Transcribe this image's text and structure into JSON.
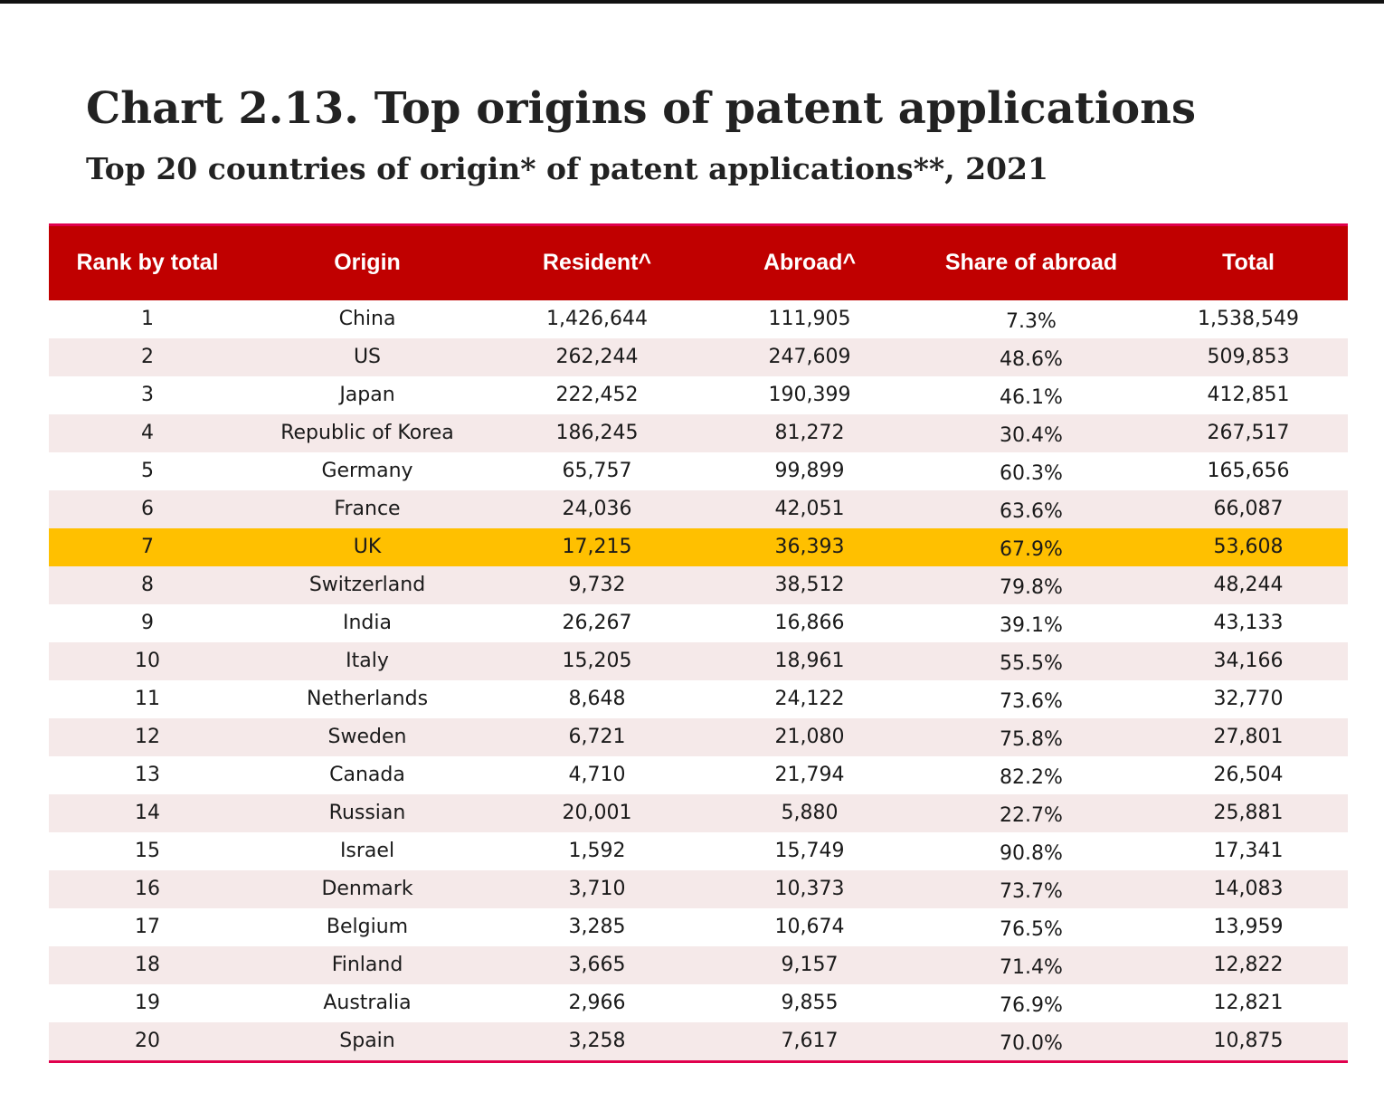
{
  "title": "Chart 2.13. Top origins of patent applications",
  "subtitle": "Top 20 countries of origin* of patent applications**, 2021",
  "colors": {
    "header_bg": "#c00000",
    "accent_line": "#e0004d",
    "alt_row": "#f5e9e9",
    "highlight_row": "#ffc000"
  },
  "chart_data": {
    "type": "table",
    "title": "Chart 2.13. Top origins of patent applications",
    "subtitle": "Top 20 countries of origin* of patent applications**, 2021",
    "columns": [
      "Rank by total",
      "Origin",
      "Resident^",
      "Abroad^",
      "Share of abroad",
      "Total"
    ],
    "highlighted_origin": "UK",
    "rows": [
      {
        "rank": "1",
        "origin": "China",
        "resident": "1,426,644",
        "abroad": "111,905",
        "share": "7.3%",
        "total": "1,538,549"
      },
      {
        "rank": "2",
        "origin": "US",
        "resident": "262,244",
        "abroad": "247,609",
        "share": "48.6%",
        "total": "509,853"
      },
      {
        "rank": "3",
        "origin": "Japan",
        "resident": "222,452",
        "abroad": "190,399",
        "share": "46.1%",
        "total": "412,851"
      },
      {
        "rank": "4",
        "origin": "Republic of Korea",
        "resident": "186,245",
        "abroad": "81,272",
        "share": "30.4%",
        "total": "267,517"
      },
      {
        "rank": "5",
        "origin": "Germany",
        "resident": "65,757",
        "abroad": "99,899",
        "share": "60.3%",
        "total": "165,656"
      },
      {
        "rank": "6",
        "origin": "France",
        "resident": "24,036",
        "abroad": "42,051",
        "share": "63.6%",
        "total": "66,087"
      },
      {
        "rank": "7",
        "origin": "UK",
        "resident": "17,215",
        "abroad": "36,393",
        "share": "67.9%",
        "total": "53,608"
      },
      {
        "rank": "8",
        "origin": "Switzerland",
        "resident": "9,732",
        "abroad": "38,512",
        "share": "79.8%",
        "total": "48,244"
      },
      {
        "rank": "9",
        "origin": "India",
        "resident": "26,267",
        "abroad": "16,866",
        "share": "39.1%",
        "total": "43,133"
      },
      {
        "rank": "10",
        "origin": "Italy",
        "resident": "15,205",
        "abroad": "18,961",
        "share": "55.5%",
        "total": "34,166"
      },
      {
        "rank": "11",
        "origin": "Netherlands",
        "resident": "8,648",
        "abroad": "24,122",
        "share": "73.6%",
        "total": "32,770"
      },
      {
        "rank": "12",
        "origin": "Sweden",
        "resident": "6,721",
        "abroad": "21,080",
        "share": "75.8%",
        "total": "27,801"
      },
      {
        "rank": "13",
        "origin": "Canada",
        "resident": "4,710",
        "abroad": "21,794",
        "share": "82.2%",
        "total": "26,504"
      },
      {
        "rank": "14",
        "origin": "Russian",
        "resident": "20,001",
        "abroad": "5,880",
        "share": "22.7%",
        "total": "25,881"
      },
      {
        "rank": "15",
        "origin": "Israel",
        "resident": "1,592",
        "abroad": "15,749",
        "share": "90.8%",
        "total": "17,341"
      },
      {
        "rank": "16",
        "origin": "Denmark",
        "resident": "3,710",
        "abroad": "10,373",
        "share": "73.7%",
        "total": "14,083"
      },
      {
        "rank": "17",
        "origin": "Belgium",
        "resident": "3,285",
        "abroad": "10,674",
        "share": "76.5%",
        "total": "13,959"
      },
      {
        "rank": "18",
        "origin": "Finland",
        "resident": "3,665",
        "abroad": "9,157",
        "share": "71.4%",
        "total": "12,822"
      },
      {
        "rank": "19",
        "origin": "Australia",
        "resident": "2,966",
        "abroad": "9,855",
        "share": "76.9%",
        "total": "12,821"
      },
      {
        "rank": "20",
        "origin": "Spain",
        "resident": "3,258",
        "abroad": "7,617",
        "share": "70.0%",
        "total": "10,875"
      }
    ]
  }
}
